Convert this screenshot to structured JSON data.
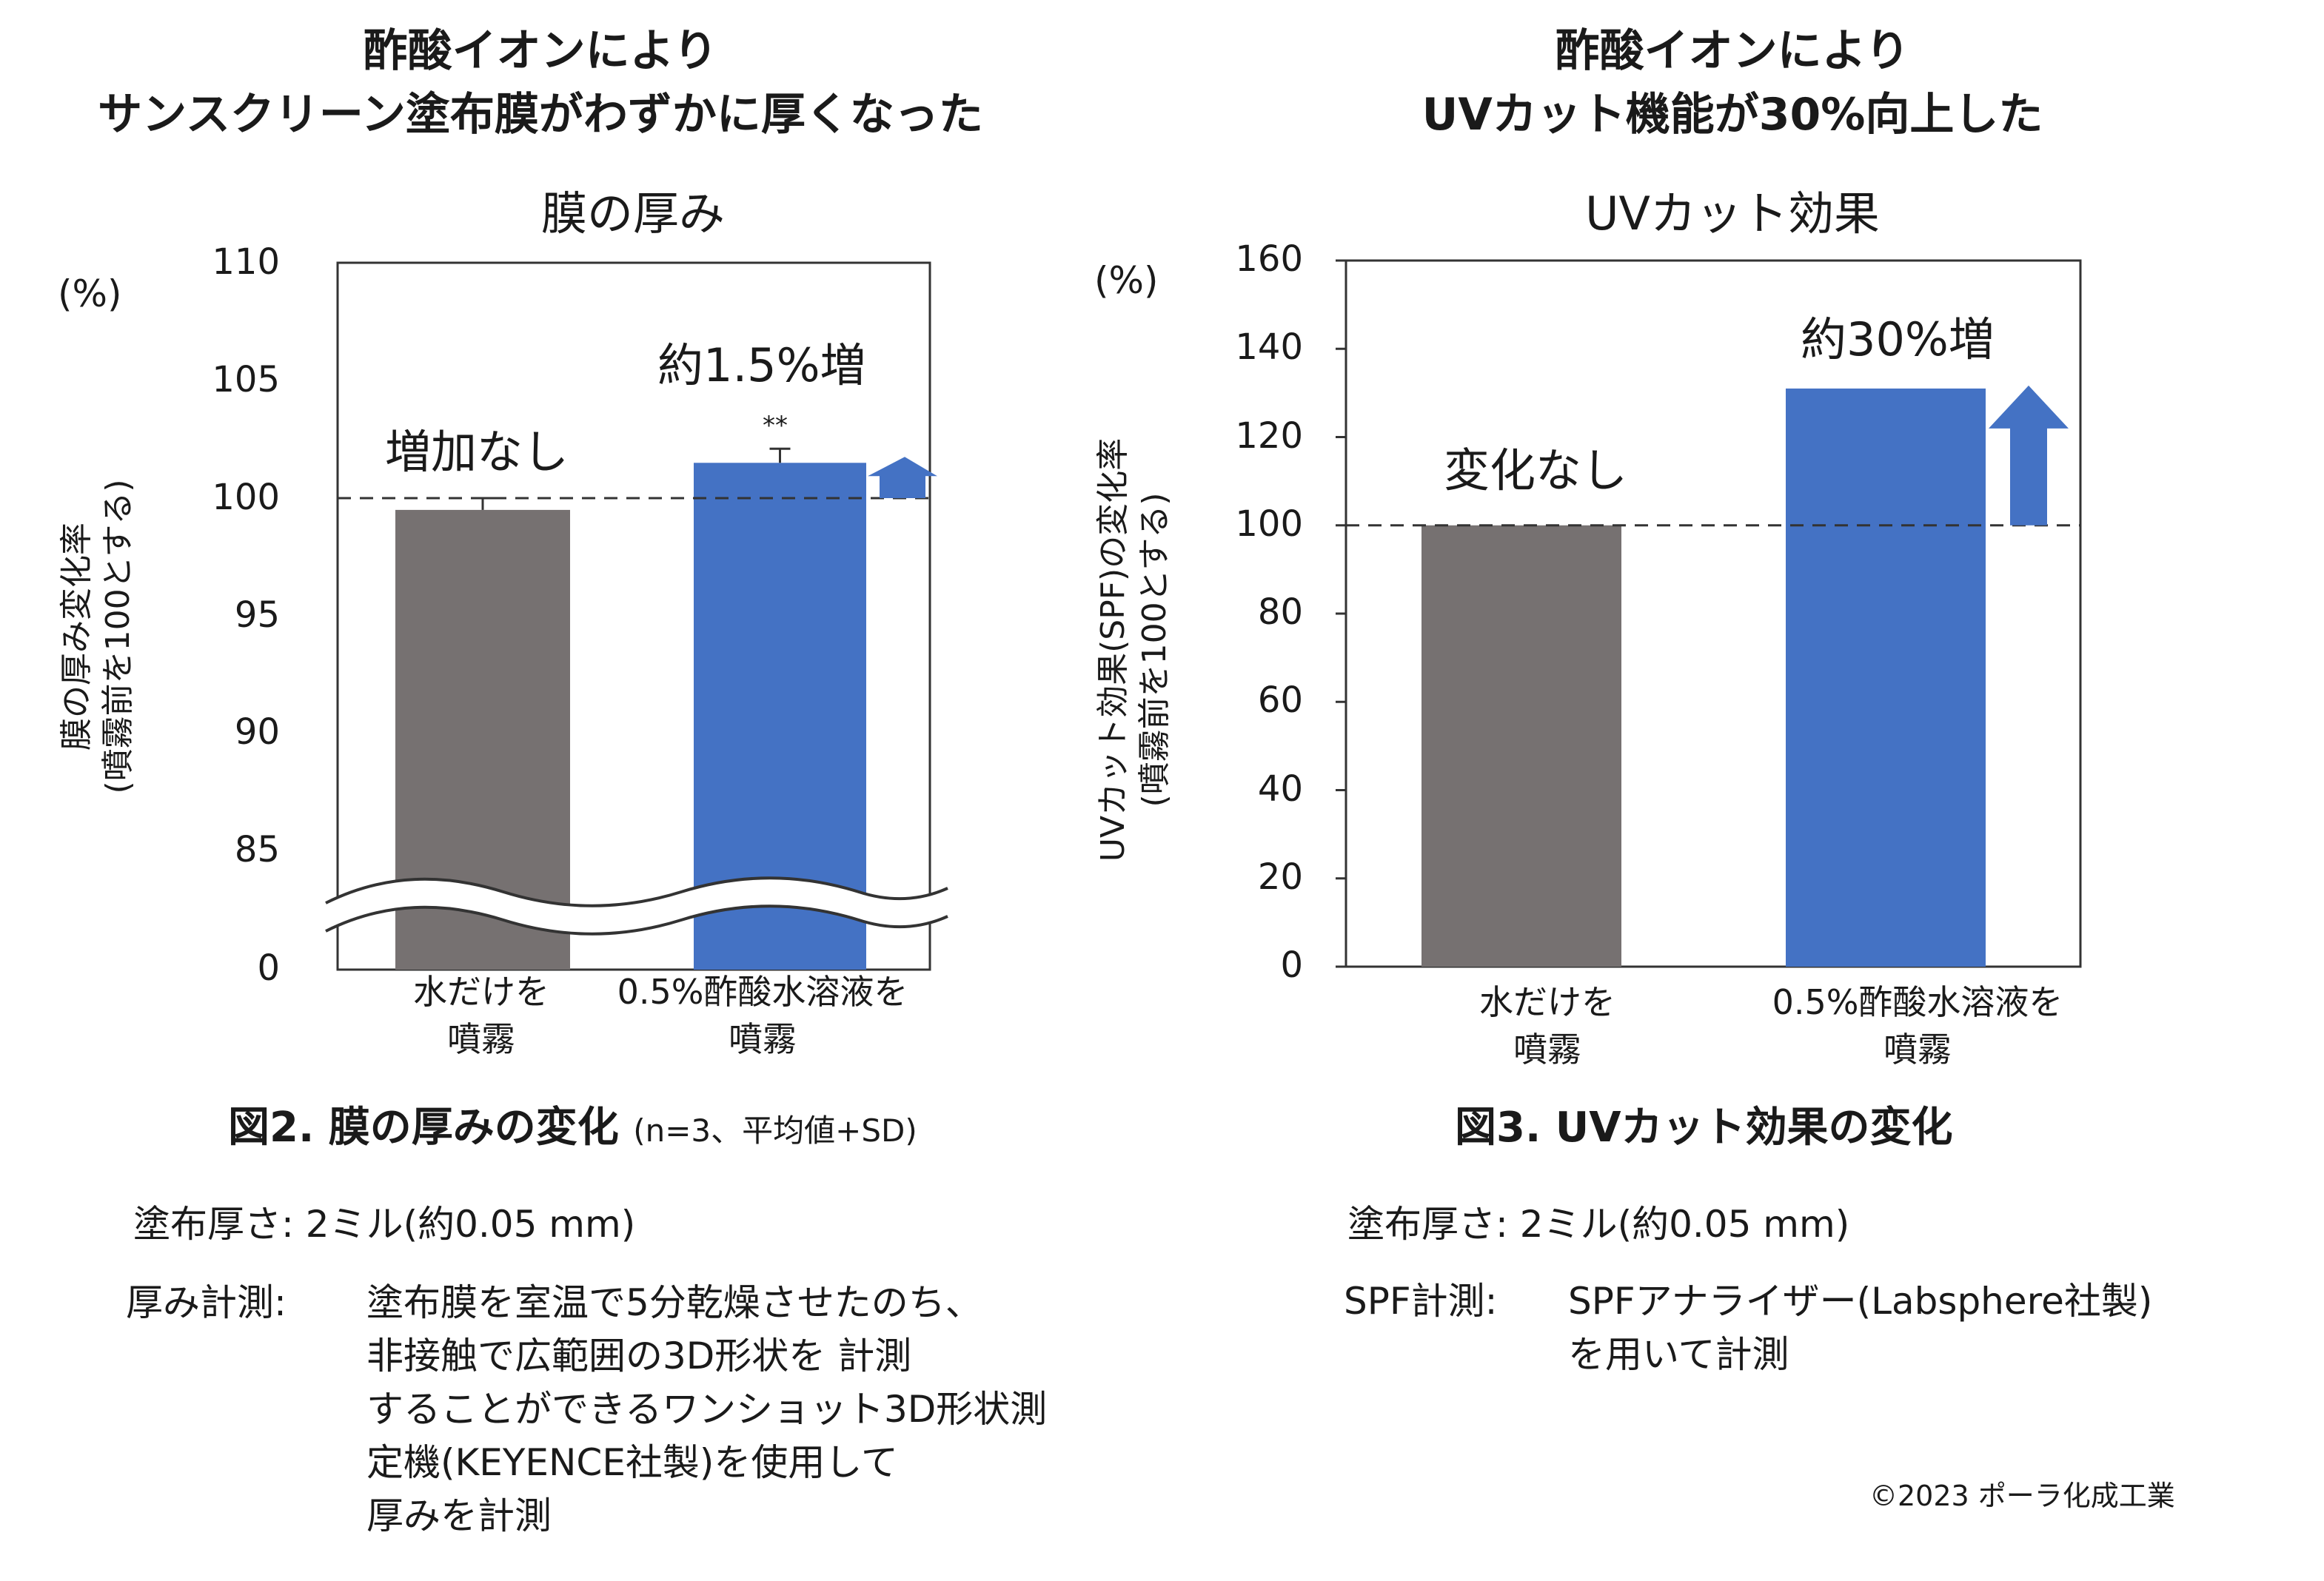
{
  "left": {
    "heading_line1": "酢酸イオンにより",
    "heading_line2": "サンスクリーン塗布膜がわずかに厚くなった",
    "chart_title": "膜の厚み",
    "unit": "(%)",
    "ylabel_line1": "膜の厚み変化率",
    "ylabel_line2": "(噴霧前を100とする)",
    "ticks": [
      "110",
      "105",
      "100",
      "95",
      "90",
      "85",
      "0"
    ],
    "annotation_none": "増加なし",
    "annotation_increase": "約1.5%増",
    "significance": "**",
    "cat1_line1": "水だけを",
    "cat1_line2": "噴霧",
    "cat2_line1": "0.5%酢酸水溶液を",
    "cat2_line2": "噴霧",
    "caption_main": "図2. 膜の厚みの変化",
    "caption_sub": "(n=3、平均値+SD)",
    "note1_label": "塗布厚さ:",
    "note1_value": "2ミル(約0.05 mm)",
    "note2_label": "厚み計測:",
    "note2_line1": "塗布膜を室温で5分乾燥させたのち、",
    "note2_line2": "非接触で広範囲の3D形状を 計測",
    "note2_line3": "することができるワンショット3D形状測",
    "note2_line4": "定機(KEYENCE社製)を使用して",
    "note2_line5": "厚みを計測"
  },
  "right": {
    "heading_line1": "酢酸イオンにより",
    "heading_line2": "UVカット機能が30%向上した",
    "chart_title": "UVカット効果",
    "unit": "(%)",
    "ylabel_line1": "UVカット効果(SPF)の変化率",
    "ylabel_line2": "(噴霧前を100とする)",
    "ticks": [
      "160",
      "140",
      "120",
      "100",
      "80",
      "60",
      "40",
      "20",
      "0"
    ],
    "annotation_none": "変化なし",
    "annotation_increase": "約30%増",
    "cat1_line1": "水だけを",
    "cat1_line2": "噴霧",
    "cat2_line1": "0.5%酢酸水溶液を",
    "cat2_line2": "噴霧",
    "caption_main": "図3. UVカット効果の変化",
    "note1_label": "塗布厚さ:",
    "note1_value": "2ミル(約0.05 mm)",
    "note2_label": "SPF計測:",
    "note2_line1": "SPFアナライザー(Labsphere社製)",
    "note2_line2": "を用いて計測"
  },
  "copyright": "©2023 ポーラ化成工業",
  "colors": {
    "gray_bar": "#767171",
    "blue_bar": "#4472C4",
    "axis": "#333333"
  },
  "chart_data": [
    {
      "type": "bar",
      "title": "膜の厚み",
      "ylabel": "膜の厚み変化率(噴霧前を100とする)",
      "categories": [
        "水だけを噴霧",
        "0.5%酢酸水溶液を噴霧"
      ],
      "values": [
        99.5,
        101.5
      ],
      "error_plus": [
        0.5,
        0.6
      ],
      "reference_line": 100,
      "ylim": [
        85,
        110
      ],
      "axis_break": "0 to 85",
      "yticks": [
        0,
        85,
        90,
        95,
        100,
        105,
        110
      ],
      "annotations": [
        "増加なし",
        "約1.5%増",
        "**"
      ]
    },
    {
      "type": "bar",
      "title": "UVカット効果",
      "ylabel": "UVカット効果(SPF)の変化率(噴霧前を100とする)",
      "categories": [
        "水だけを噴霧",
        "0.5%酢酸水溶液を噴霧"
      ],
      "values": [
        100,
        131
      ],
      "reference_line": 100,
      "ylim": [
        0,
        160
      ],
      "yticks": [
        0,
        20,
        40,
        60,
        80,
        100,
        120,
        140,
        160
      ],
      "annotations": [
        "変化なし",
        "約30%増"
      ]
    }
  ]
}
